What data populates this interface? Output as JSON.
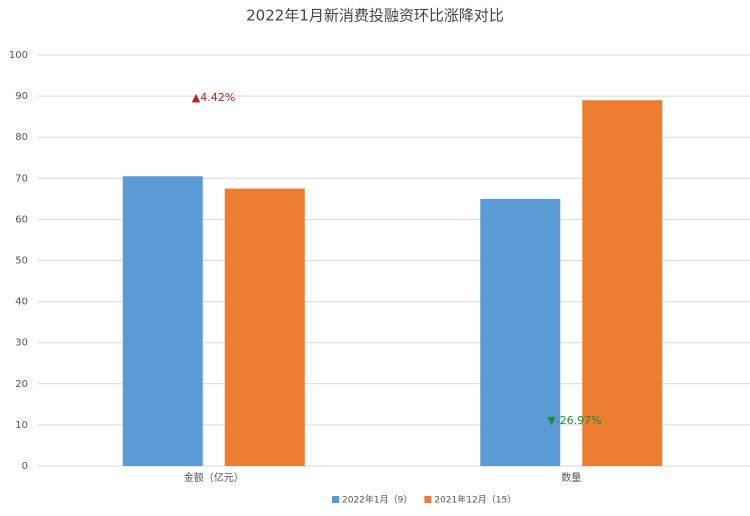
{
  "chart_data": {
    "type": "bar",
    "title": "2022年1月新消费投融资环比涨降对比",
    "categories": [
      "金额（亿元）",
      "数量"
    ],
    "series": [
      {
        "name": "2022年1月（9）",
        "color": "#5b9bd5",
        "values": [
          70.5,
          65
        ]
      },
      {
        "name": "2021年12月（15）",
        "color": "#ed7d31",
        "values": [
          67.5,
          89
        ]
      }
    ],
    "annotations": [
      {
        "text": "▲4.42%",
        "color": "#c0202a"
      },
      {
        "text": "▼-26.97%",
        "color": "#1f8a3c"
      }
    ],
    "ylim": [
      0,
      100
    ],
    "yticks": [
      0,
      10,
      20,
      30,
      40,
      50,
      60,
      70,
      80,
      90,
      100
    ],
    "grid": true,
    "legend": "bottom"
  }
}
